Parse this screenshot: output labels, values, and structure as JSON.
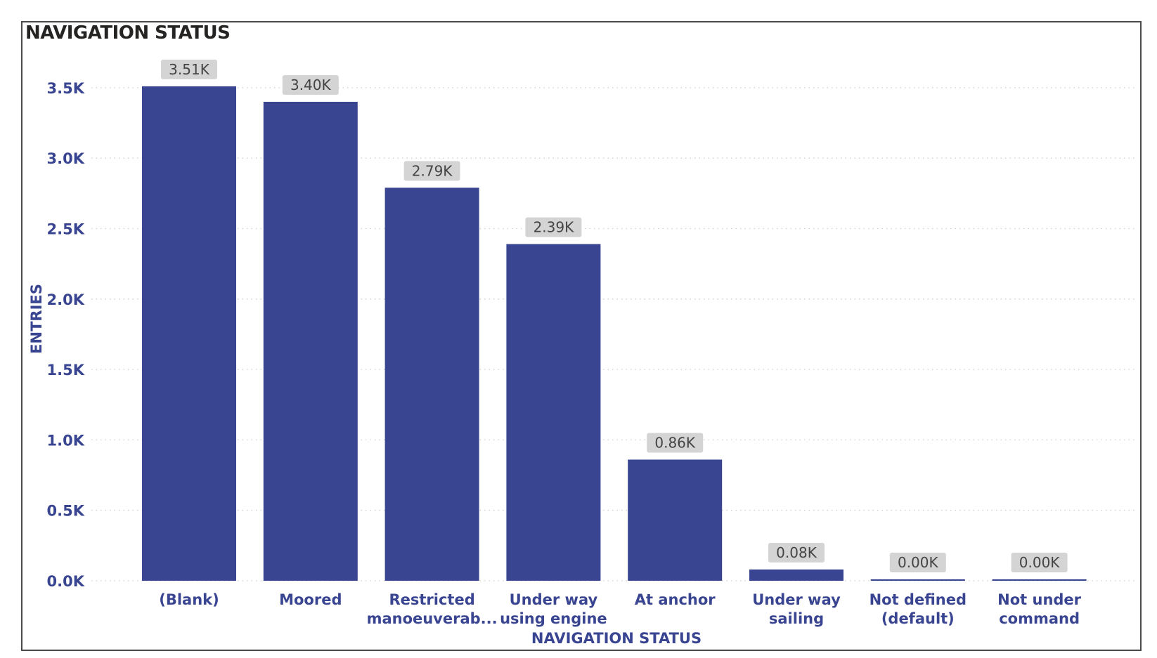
{
  "chart_data": {
    "type": "bar",
    "title": "NAVIGATION STATUS",
    "xlabel": "NAVIGATION STATUS",
    "ylabel": "ENTRIES",
    "ylim": [
      0,
      3.7
    ],
    "yticks": [
      {
        "value": 0.0,
        "label": "0.0K"
      },
      {
        "value": 0.5,
        "label": "0.5K"
      },
      {
        "value": 1.0,
        "label": "1.0K"
      },
      {
        "value": 1.5,
        "label": "1.5K"
      },
      {
        "value": 2.0,
        "label": "2.0K"
      },
      {
        "value": 2.5,
        "label": "2.5K"
      },
      {
        "value": 3.0,
        "label": "3.0K"
      },
      {
        "value": 3.5,
        "label": "3.5K"
      }
    ],
    "categories": [
      [
        "(Blank)"
      ],
      [
        "Moored"
      ],
      [
        "Restricted",
        "manoeuverab..."
      ],
      [
        "Under way",
        "using engine"
      ],
      [
        "At anchor"
      ],
      [
        "Under way",
        "sailing"
      ],
      [
        "Not defined",
        "(default)"
      ],
      [
        "Not under",
        "command"
      ]
    ],
    "values": [
      3.51,
      3.4,
      2.79,
      2.39,
      0.86,
      0.08,
      0.0,
      0.0
    ],
    "data_labels": [
      "3.51K",
      "3.40K",
      "2.79K",
      "2.39K",
      "0.86K",
      "0.08K",
      "0.00K",
      "0.00K"
    ],
    "grid": true,
    "legend": "none",
    "colors": {
      "bar": "#3a4592",
      "label_bg": "#d4d4d4",
      "axis_text": "#3a4592"
    }
  }
}
